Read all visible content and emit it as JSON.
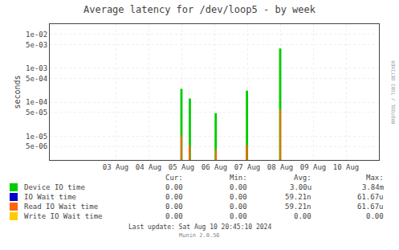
{
  "chart_data": {
    "type": "bar",
    "title": "Average latency for /dev/loop5 - by week",
    "y_label": "seconds",
    "log": "y",
    "grid": true,
    "legend": "bottom",
    "xlim": [
      1722470400,
      1723334400
    ],
    "xticks": [
      {
        "value": 1722643200,
        "label": "03 Aug"
      },
      {
        "value": 1722729600,
        "label": "04 Aug"
      },
      {
        "value": 1722816000,
        "label": "05 Aug"
      },
      {
        "value": 1722902400,
        "label": "06 Aug"
      },
      {
        "value": 1722988800,
        "label": "07 Aug"
      },
      {
        "value": 1723075200,
        "label": "08 Aug"
      },
      {
        "value": 1723161600,
        "label": "09 Aug"
      },
      {
        "value": 1723248000,
        "label": "10 Aug"
      }
    ],
    "ylim": [
      2e-06,
      0.02
    ],
    "yticks": [
      {
        "value": 5e-06,
        "label": "5e-06"
      },
      {
        "value": 1e-05,
        "label": "1e-05"
      },
      {
        "value": 5e-05,
        "label": "5e-05"
      },
      {
        "value": 0.0001,
        "label": "1e-04"
      },
      {
        "value": 0.0005,
        "label": "5e-04"
      },
      {
        "value": 0.001,
        "label": "1e-03"
      },
      {
        "value": 0.005,
        "label": "5e-03"
      },
      {
        "value": 0.01,
        "label": "1e-02"
      }
    ],
    "legend_columns": [
      "Cur:",
      "Min:",
      "Avg:",
      "Max:"
    ],
    "series": [
      {
        "name": "Device IO time",
        "color": "#00cc00",
        "x": [
          1722816000,
          1722838000,
          1722906000,
          1722988000,
          1723075200
        ],
        "half_widths": [
          3000,
          3000,
          3000,
          3000,
          3000
        ],
        "values": [
          0.00025,
          0.00013,
          4.8e-05,
          0.00022,
          0.00384
        ],
        "legend_values": [
          "0.00",
          "0.00",
          "3.00u",
          "3.84m"
        ]
      },
      {
        "name": "IO Wait time",
        "color": "#0000cc",
        "x": [],
        "half_widths": [],
        "values": [],
        "legend_values": [
          "0.00",
          "0.00",
          "59.21n",
          "61.67u"
        ]
      },
      {
        "name": "Read IO Wait time",
        "color": "#ff6600",
        "x": [
          1722816000,
          1722838000,
          1722906000,
          1722988000,
          1723075200
        ],
        "half_widths": [
          1500,
          1500,
          1500,
          1500,
          1500
        ],
        "values": [
          1.05e-05,
          5.3e-06,
          4e-06,
          5.5e-06,
          6.167e-05
        ],
        "legend_values": [
          "0.00",
          "0.00",
          "59.21n",
          "61.67u"
        ]
      },
      {
        "name": "Write IO Wait time",
        "color": "#ffcc00",
        "x": [],
        "half_widths": [],
        "values": [],
        "legend_values": [
          "0.00",
          "0.00",
          "0.00",
          "0.00"
        ]
      }
    ],
    "annotations": [
      "Last update: Sat Aug 10 20:45:10 2024",
      "Munin 2.0.56",
      "RRDTOOL / TOBI OETIKER"
    ]
  }
}
